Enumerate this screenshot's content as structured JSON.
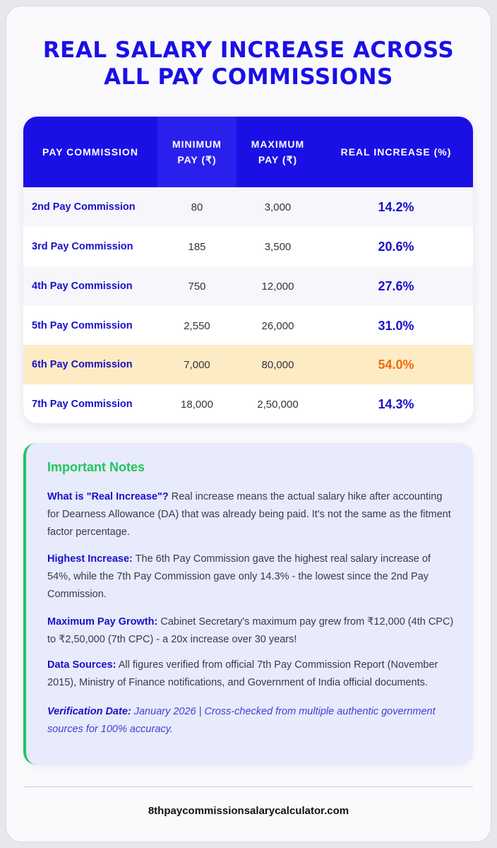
{
  "title": {
    "line1": "REAL SALARY INCREASE ACROSS",
    "line2": "ALL PAY COMMISSIONS"
  },
  "table": {
    "headers": {
      "commission": "PAY COMMISSION",
      "min": "MINIMUM PAY (₹)",
      "max": "MAXIMUM PAY (₹)",
      "increase": "REAL INCREASE (%)"
    },
    "rows": [
      {
        "name": "2nd Pay Commission",
        "min": "80",
        "max": "3,000",
        "increase": "14.2%"
      },
      {
        "name": "3rd Pay Commission",
        "min": "185",
        "max": "3,500",
        "increase": "20.6%"
      },
      {
        "name": "4th Pay Commission",
        "min": "750",
        "max": "12,000",
        "increase": "27.6%"
      },
      {
        "name": "5th Pay Commission",
        "min": "2,550",
        "max": "26,000",
        "increase": "31.0%"
      },
      {
        "name": "6th Pay Commission",
        "min": "7,000",
        "max": "80,000",
        "increase": "54.0%"
      },
      {
        "name": "7th Pay Commission",
        "min": "18,000",
        "max": "2,50,000",
        "increase": "14.3%"
      }
    ],
    "highlight_color": "#fdebc4",
    "highlight_text_color": "#ef6c0c"
  },
  "notes": {
    "title": "Important Notes",
    "items": [
      {
        "label": "What is \"Real Increase\"?",
        "text": " Real increase means the actual salary hike after accounting for Dearness Allowance (DA) that was already being paid. It's not the same as the fitment factor percentage."
      },
      {
        "label": "Highest Increase:",
        "text": " The 6th Pay Commission gave the highest real salary increase of 54%, while the 7th Pay Commission gave only 14.3% - the lowest since the 2nd Pay Commission."
      },
      {
        "label": "Maximum Pay Growth:",
        "text": " Cabinet Secretary's maximum pay grew from ₹12,000 (4th CPC) to ₹2,50,000 (7th CPC) - a 20x increase over 30 years!"
      },
      {
        "label": "Data Sources:",
        "text": " All figures verified from official 7th Pay Commission Report (November 2015), Ministry of Finance notifications, and Government of India official documents."
      },
      {
        "label": "Verification Date:",
        "text": " January 2026 | Cross-checked from multiple authentic government sources for 100% accuracy."
      }
    ]
  },
  "footer": {
    "site": "8thpaycommissionsalarycalculator.com"
  },
  "colors": {
    "brand_blue": "#1a10e6",
    "accent_green": "#22c55e",
    "highlight_orange": "#ef6c0c"
  }
}
